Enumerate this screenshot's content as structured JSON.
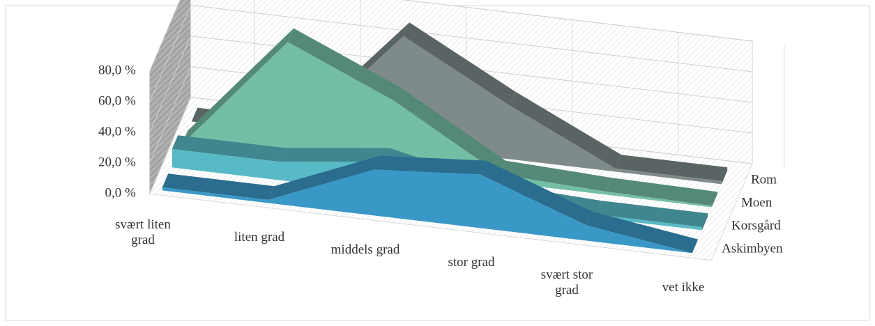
{
  "chart_data": {
    "type": "area3d",
    "categories": [
      "svært liten grad",
      "liten grad",
      "middels grad",
      "stor grad",
      "svært stor grad",
      "vet ikke"
    ],
    "series": [
      {
        "name": "Askimbyen",
        "color": "#3a98c6",
        "values": [
          2,
          2,
          30,
          35,
          10,
          0
        ]
      },
      {
        "name": "Korsgård",
        "color": "#58bac6",
        "values": [
          12,
          12,
          20,
          5,
          2,
          2
        ]
      },
      {
        "name": "Moen",
        "color": "#74bea6",
        "values": [
          0,
          75,
          45,
          5,
          2,
          1
        ]
      },
      {
        "name": "Rom",
        "color": "#7f8b8b",
        "values": [
          0,
          0,
          72,
          35,
          2,
          2
        ]
      }
    ],
    "ylim": [
      0,
      80
    ],
    "yticks": [
      {
        "value": 0,
        "label": "0,0 %"
      },
      {
        "value": 20,
        "label": "20,0 %"
      },
      {
        "value": 40,
        "label": "40,0 %"
      },
      {
        "value": 60,
        "label": "60,0 %"
      },
      {
        "value": 80,
        "label": "80,0 %"
      }
    ],
    "grid": true
  }
}
